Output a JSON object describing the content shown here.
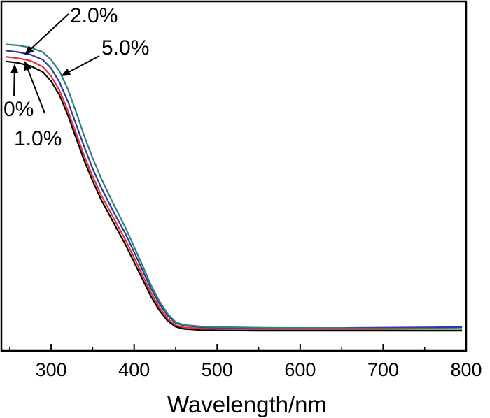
{
  "chart_data": {
    "type": "line",
    "title": "",
    "xlabel": "Wavelength/nm",
    "ylabel": "",
    "xlim": [
      240,
      800
    ],
    "ylim": [
      0,
      1
    ],
    "grid": false,
    "legend": "none",
    "xticks": [
      300,
      400,
      500,
      600,
      700,
      800
    ],
    "xtick_labels": [
      "300",
      "400",
      "500",
      "600",
      "700",
      "800"
    ],
    "x": [
      245,
      260,
      275,
      290,
      300,
      310,
      320,
      330,
      340,
      350,
      360,
      375,
      390,
      400,
      410,
      420,
      430,
      440,
      450,
      460,
      480,
      500,
      550,
      600,
      650,
      700,
      750,
      795
    ],
    "series": [
      {
        "name": "0%",
        "color": "#000000",
        "values": [
          0.88,
          0.875,
          0.865,
          0.845,
          0.815,
          0.77,
          0.705,
          0.63,
          0.555,
          0.49,
          0.43,
          0.355,
          0.28,
          0.225,
          0.17,
          0.115,
          0.07,
          0.035,
          0.015,
          0.008,
          0.004,
          0.003,
          0.002,
          0.002,
          0.002,
          0.002,
          0.002,
          0.002
        ]
      },
      {
        "name": "1.0%",
        "color": "#e8312f",
        "values": [
          0.895,
          0.89,
          0.882,
          0.862,
          0.832,
          0.785,
          0.72,
          0.645,
          0.57,
          0.505,
          0.445,
          0.37,
          0.295,
          0.24,
          0.183,
          0.127,
          0.08,
          0.042,
          0.02,
          0.013,
          0.009,
          0.008,
          0.007,
          0.007,
          0.007,
          0.007,
          0.008,
          0.008
        ]
      },
      {
        "name": "2.0%",
        "color": "#2b3a9e",
        "values": [
          0.915,
          0.91,
          0.902,
          0.885,
          0.857,
          0.812,
          0.75,
          0.675,
          0.6,
          0.53,
          0.47,
          0.39,
          0.315,
          0.258,
          0.2,
          0.14,
          0.092,
          0.052,
          0.027,
          0.019,
          0.014,
          0.012,
          0.011,
          0.011,
          0.011,
          0.012,
          0.013,
          0.014
        ]
      },
      {
        "name": "5.0%",
        "color": "#2f7f7a",
        "values": [
          0.935,
          0.932,
          0.925,
          0.91,
          0.885,
          0.848,
          0.79,
          0.715,
          0.635,
          0.565,
          0.5,
          0.415,
          0.335,
          0.275,
          0.215,
          0.152,
          0.1,
          0.058,
          0.03,
          0.021,
          0.016,
          0.014,
          0.012,
          0.011,
          0.01,
          0.009,
          0.009,
          0.008
        ]
      }
    ],
    "annotations": [
      {
        "text": "2.0%",
        "series": "2.0%",
        "target_x": 268
      },
      {
        "text": "5.0%",
        "series": "5.0%",
        "target_x": 312
      },
      {
        "text": "0%",
        "series": "0%",
        "target_x": 256
      },
      {
        "text": "1.0%",
        "series": "1.0%",
        "target_x": 268
      }
    ]
  }
}
